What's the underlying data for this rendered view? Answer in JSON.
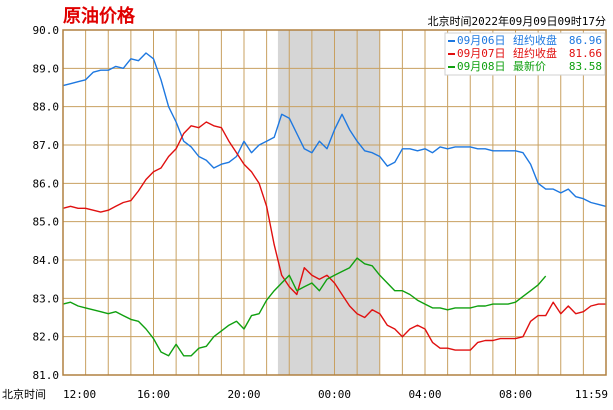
{
  "title": "原油价格",
  "timestamp": "北京时间2022年09月09日09时17分",
  "colors": {
    "title": "#e00000",
    "grid": "#c8a060",
    "frame": "#b08040",
    "shade": "#d6d6d6",
    "series_0906": "#1e78e0",
    "series_0907": "#e01010",
    "series_0908": "#10a010"
  },
  "legend": [
    {
      "date": "09月06日",
      "label": "纽约收盘",
      "value": "86.96"
    },
    {
      "date": "09月07日",
      "label": "纽约收盘",
      "value": "81.66"
    },
    {
      "date": "09月08日",
      "label": "最新价",
      "value": "83.58"
    }
  ],
  "chart_data": {
    "type": "line",
    "ylim": [
      81.0,
      90.0
    ],
    "yticks": [
      "90.0",
      "89.0",
      "88.0",
      "87.0",
      "86.0",
      "85.0",
      "84.0",
      "83.0",
      "82.0",
      "81.0"
    ],
    "x_axis_label": "北京时间",
    "xticks": [
      "12:00",
      "16:00",
      "20:00",
      "00:00",
      "04:00",
      "08:00",
      "11:59"
    ],
    "shaded_session": [
      "21:30",
      "02:00"
    ],
    "grid": true,
    "legend_position": "top-right",
    "series": [
      {
        "name": "09月06日",
        "color_key": "series_0906",
        "points": [
          [
            "12:00",
            88.55
          ],
          [
            "12:20",
            88.6
          ],
          [
            "12:40",
            88.65
          ],
          [
            "13:00",
            88.7
          ],
          [
            "13:20",
            88.9
          ],
          [
            "13:40",
            88.95
          ],
          [
            "14:00",
            88.95
          ],
          [
            "14:20",
            89.05
          ],
          [
            "14:40",
            89.0
          ],
          [
            "15:00",
            89.25
          ],
          [
            "15:20",
            89.2
          ],
          [
            "15:40",
            89.4
          ],
          [
            "16:00",
            89.25
          ],
          [
            "16:20",
            88.7
          ],
          [
            "16:40",
            88.0
          ],
          [
            "17:00",
            87.6
          ],
          [
            "17:20",
            87.1
          ],
          [
            "17:40",
            86.95
          ],
          [
            "18:00",
            86.7
          ],
          [
            "18:20",
            86.6
          ],
          [
            "18:40",
            86.4
          ],
          [
            "19:00",
            86.5
          ],
          [
            "19:20",
            86.55
          ],
          [
            "19:40",
            86.7
          ],
          [
            "20:00",
            87.1
          ],
          [
            "20:20",
            86.8
          ],
          [
            "20:40",
            87.0
          ],
          [
            "21:00",
            87.1
          ],
          [
            "21:20",
            87.2
          ],
          [
            "21:40",
            87.8
          ],
          [
            "22:00",
            87.7
          ],
          [
            "22:20",
            87.3
          ],
          [
            "22:40",
            86.9
          ],
          [
            "23:00",
            86.8
          ],
          [
            "23:20",
            87.1
          ],
          [
            "23:40",
            86.9
          ],
          [
            "00:00",
            87.4
          ],
          [
            "00:20",
            87.8
          ],
          [
            "00:40",
            87.4
          ],
          [
            "01:00",
            87.1
          ],
          [
            "01:20",
            86.85
          ],
          [
            "01:40",
            86.8
          ],
          [
            "02:00",
            86.7
          ],
          [
            "02:20",
            86.45
          ],
          [
            "02:40",
            86.55
          ],
          [
            "03:00",
            86.9
          ],
          [
            "03:20",
            86.9
          ],
          [
            "03:40",
            86.85
          ],
          [
            "04:00",
            86.9
          ],
          [
            "04:20",
            86.8
          ],
          [
            "04:40",
            86.95
          ],
          [
            "05:00",
            86.9
          ],
          [
            "05:20",
            86.95
          ],
          [
            "05:40",
            86.95
          ],
          [
            "06:00",
            86.95
          ],
          [
            "06:20",
            86.9
          ],
          [
            "06:40",
            86.9
          ],
          [
            "07:00",
            86.85
          ],
          [
            "07:20",
            86.85
          ],
          [
            "07:40",
            86.85
          ],
          [
            "08:00",
            86.85
          ],
          [
            "08:20",
            86.8
          ],
          [
            "08:40",
            86.5
          ],
          [
            "09:00",
            86.0
          ],
          [
            "09:20",
            85.85
          ],
          [
            "09:40",
            85.85
          ],
          [
            "10:00",
            85.75
          ],
          [
            "10:20",
            85.85
          ],
          [
            "10:40",
            85.65
          ],
          [
            "11:00",
            85.6
          ],
          [
            "11:20",
            85.5
          ],
          [
            "11:40",
            85.45
          ],
          [
            "11:59",
            85.4
          ]
        ]
      },
      {
        "name": "09月07日",
        "color_key": "series_0907",
        "points": [
          [
            "12:00",
            85.35
          ],
          [
            "12:20",
            85.4
          ],
          [
            "12:40",
            85.35
          ],
          [
            "13:00",
            85.35
          ],
          [
            "13:20",
            85.3
          ],
          [
            "13:40",
            85.25
          ],
          [
            "14:00",
            85.3
          ],
          [
            "14:20",
            85.4
          ],
          [
            "14:40",
            85.5
          ],
          [
            "15:00",
            85.55
          ],
          [
            "15:20",
            85.8
          ],
          [
            "15:40",
            86.1
          ],
          [
            "16:00",
            86.3
          ],
          [
            "16:20",
            86.4
          ],
          [
            "16:40",
            86.7
          ],
          [
            "17:00",
            86.9
          ],
          [
            "17:20",
            87.3
          ],
          [
            "17:40",
            87.5
          ],
          [
            "18:00",
            87.45
          ],
          [
            "18:20",
            87.6
          ],
          [
            "18:40",
            87.5
          ],
          [
            "19:00",
            87.45
          ],
          [
            "19:20",
            87.1
          ],
          [
            "19:40",
            86.8
          ],
          [
            "20:00",
            86.5
          ],
          [
            "20:20",
            86.3
          ],
          [
            "20:40",
            86.0
          ],
          [
            "21:00",
            85.4
          ],
          [
            "21:20",
            84.4
          ],
          [
            "21:40",
            83.6
          ],
          [
            "22:00",
            83.3
          ],
          [
            "22:20",
            83.1
          ],
          [
            "22:40",
            83.8
          ],
          [
            "23:00",
            83.6
          ],
          [
            "23:20",
            83.5
          ],
          [
            "23:40",
            83.6
          ],
          [
            "00:00",
            83.4
          ],
          [
            "00:20",
            83.1
          ],
          [
            "00:40",
            82.8
          ],
          [
            "01:00",
            82.6
          ],
          [
            "01:20",
            82.5
          ],
          [
            "01:40",
            82.7
          ],
          [
            "02:00",
            82.6
          ],
          [
            "02:20",
            82.3
          ],
          [
            "02:40",
            82.2
          ],
          [
            "03:00",
            82.0
          ],
          [
            "03:20",
            82.2
          ],
          [
            "03:40",
            82.3
          ],
          [
            "04:00",
            82.2
          ],
          [
            "04:20",
            81.85
          ],
          [
            "04:40",
            81.7
          ],
          [
            "05:00",
            81.7
          ],
          [
            "05:20",
            81.65
          ],
          [
            "05:40",
            81.65
          ],
          [
            "06:00",
            81.65
          ],
          [
            "06:20",
            81.85
          ],
          [
            "06:40",
            81.9
          ],
          [
            "07:00",
            81.9
          ],
          [
            "07:20",
            81.95
          ],
          [
            "07:40",
            81.95
          ],
          [
            "08:00",
            81.95
          ],
          [
            "08:20",
            82.0
          ],
          [
            "08:40",
            82.4
          ],
          [
            "09:00",
            82.55
          ],
          [
            "09:20",
            82.55
          ],
          [
            "09:40",
            82.9
          ],
          [
            "10:00",
            82.6
          ],
          [
            "10:20",
            82.8
          ],
          [
            "10:40",
            82.6
          ],
          [
            "11:00",
            82.65
          ],
          [
            "11:20",
            82.8
          ],
          [
            "11:40",
            82.85
          ],
          [
            "11:59",
            82.85
          ]
        ]
      },
      {
        "name": "09月08日",
        "color_key": "series_0908",
        "points": [
          [
            "12:00",
            82.85
          ],
          [
            "12:20",
            82.9
          ],
          [
            "12:40",
            82.8
          ],
          [
            "13:00",
            82.75
          ],
          [
            "13:20",
            82.7
          ],
          [
            "13:40",
            82.65
          ],
          [
            "14:00",
            82.6
          ],
          [
            "14:20",
            82.65
          ],
          [
            "14:40",
            82.55
          ],
          [
            "15:00",
            82.45
          ],
          [
            "15:20",
            82.4
          ],
          [
            "15:40",
            82.2
          ],
          [
            "16:00",
            81.95
          ],
          [
            "16:20",
            81.6
          ],
          [
            "16:40",
            81.5
          ],
          [
            "17:00",
            81.8
          ],
          [
            "17:20",
            81.5
          ],
          [
            "17:40",
            81.5
          ],
          [
            "18:00",
            81.7
          ],
          [
            "18:20",
            81.75
          ],
          [
            "18:40",
            82.0
          ],
          [
            "19:00",
            82.15
          ],
          [
            "19:20",
            82.3
          ],
          [
            "19:40",
            82.4
          ],
          [
            "20:00",
            82.2
          ],
          [
            "20:20",
            82.55
          ],
          [
            "20:40",
            82.6
          ],
          [
            "21:00",
            82.95
          ],
          [
            "21:20",
            83.2
          ],
          [
            "21:40",
            83.4
          ],
          [
            "22:00",
            83.6
          ],
          [
            "22:20",
            83.2
          ],
          [
            "22:40",
            83.3
          ],
          [
            "23:00",
            83.4
          ],
          [
            "23:20",
            83.2
          ],
          [
            "23:40",
            83.5
          ],
          [
            "00:00",
            83.6
          ],
          [
            "00:20",
            83.7
          ],
          [
            "00:40",
            83.8
          ],
          [
            "01:00",
            84.05
          ],
          [
            "01:20",
            83.9
          ],
          [
            "01:40",
            83.85
          ],
          [
            "02:00",
            83.6
          ],
          [
            "02:20",
            83.4
          ],
          [
            "02:40",
            83.2
          ],
          [
            "03:00",
            83.2
          ],
          [
            "03:20",
            83.1
          ],
          [
            "03:40",
            82.95
          ],
          [
            "04:00",
            82.85
          ],
          [
            "04:20",
            82.75
          ],
          [
            "04:40",
            82.75
          ],
          [
            "05:00",
            82.7
          ],
          [
            "05:20",
            82.75
          ],
          [
            "05:40",
            82.75
          ],
          [
            "06:00",
            82.75
          ],
          [
            "06:20",
            82.8
          ],
          [
            "06:40",
            82.8
          ],
          [
            "07:00",
            82.85
          ],
          [
            "07:20",
            82.85
          ],
          [
            "07:40",
            82.85
          ],
          [
            "08:00",
            82.9
          ],
          [
            "08:20",
            83.05
          ],
          [
            "08:40",
            83.2
          ],
          [
            "09:00",
            83.35
          ],
          [
            "09:20",
            83.58
          ]
        ]
      }
    ]
  }
}
